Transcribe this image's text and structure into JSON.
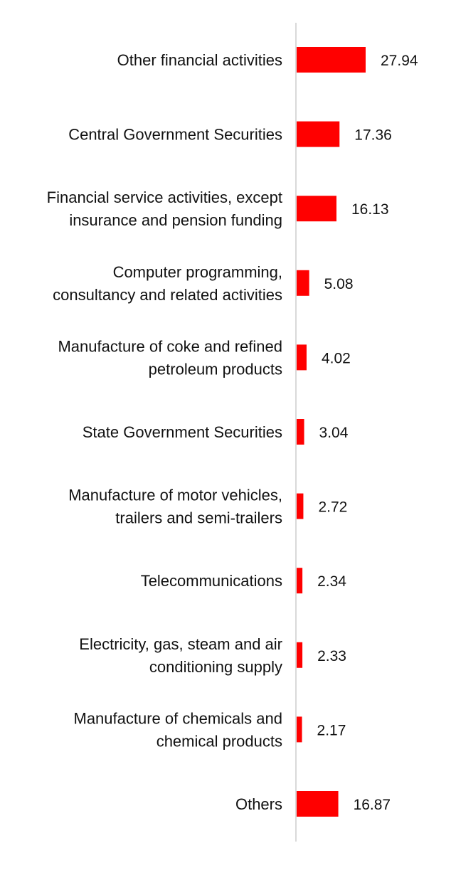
{
  "chart_data": {
    "type": "bar",
    "orientation": "horizontal",
    "bar_color": "#ff0000",
    "axis_color": "#d9d9d9",
    "xlim": [
      0,
      150
    ],
    "categories": [
      "Other financial activities",
      "Central Government Securities",
      "Financial service activities, except insurance and pension funding",
      "Computer programming, consultancy and related activities",
      "Manufacture of coke and refined petroleum products",
      "State Government Securities",
      "Manufacture of motor vehicles, trailers and semi-trailers",
      "Telecommunications",
      "Electricity, gas, steam and air conditioning supply",
      "Manufacture of chemicals and chemical products",
      "Others"
    ],
    "category_lines": [
      [
        "Other financial activities"
      ],
      [
        "Central Government Securities"
      ],
      [
        "Financial service activities, except",
        "insurance and pension funding"
      ],
      [
        "Computer programming,",
        "consultancy and related activities"
      ],
      [
        "Manufacture of coke and refined",
        "petroleum products"
      ],
      [
        "State Government Securities"
      ],
      [
        "Manufacture of motor vehicles,",
        "trailers and semi-trailers"
      ],
      [
        "Telecommunications"
      ],
      [
        "Electricity, gas, steam and air",
        "conditioning supply"
      ],
      [
        "Manufacture of chemicals and",
        "chemical products"
      ],
      [
        "Others"
      ]
    ],
    "values": [
      27.94,
      17.36,
      16.13,
      5.08,
      4.02,
      3.04,
      2.72,
      2.34,
      2.33,
      2.17,
      16.87
    ],
    "value_labels": [
      "27.94",
      "17.36",
      "16.13",
      "5.08",
      "4.02",
      "3.04",
      "2.72",
      "2.34",
      "2.33",
      "2.17",
      "16.87"
    ],
    "grid": false,
    "legend": "none"
  }
}
